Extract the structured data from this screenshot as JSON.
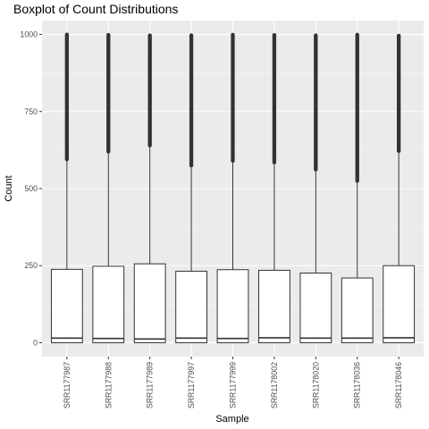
{
  "chart_data": {
    "type": "boxplot",
    "title": "Boxplot of Count Distributions",
    "xlabel": "Sample",
    "ylabel": "Count",
    "ylim": [
      -45,
      1045
    ],
    "yticks": [
      0,
      250,
      500,
      750,
      1000
    ],
    "yticklabels": [
      "0",
      "250",
      "500",
      "750",
      "1000"
    ],
    "grid": true,
    "legend": "none",
    "colors": {
      "panel": "#ebebeb",
      "grid_major": "#ffffff",
      "grid_minor": "#f5f5f5",
      "box_fill": "#ffffff",
      "box_line": "#333333",
      "outlier": "#333333",
      "tick_text": "#4d4d4d"
    },
    "categories": [
      "SRR1177987",
      "SRR1177988",
      "SRR1177989",
      "SRR1177997",
      "SRR1177999",
      "SRR1178002",
      "SRR1178020",
      "SRR1178036",
      "SRR1178046"
    ],
    "boxes": [
      {
        "q1": 0,
        "median": 15,
        "q3": 238,
        "whisker_low": 0,
        "whisker_high": 595,
        "outlier_min": 595,
        "outlier_max": 1000
      },
      {
        "q1": 0,
        "median": 14,
        "q3": 248,
        "whisker_low": 0,
        "whisker_high": 620,
        "outlier_min": 620,
        "outlier_max": 1000
      },
      {
        "q1": 0,
        "median": 12,
        "q3": 256,
        "whisker_low": 0,
        "whisker_high": 640,
        "outlier_min": 640,
        "outlier_max": 1000
      },
      {
        "q1": 0,
        "median": 15,
        "q3": 232,
        "whisker_low": 0,
        "whisker_high": 575,
        "outlier_min": 575,
        "outlier_max": 1000
      },
      {
        "q1": 0,
        "median": 14,
        "q3": 237,
        "whisker_low": 0,
        "whisker_high": 590,
        "outlier_min": 590,
        "outlier_max": 1000
      },
      {
        "q1": 0,
        "median": 16,
        "q3": 235,
        "whisker_low": 0,
        "whisker_high": 585,
        "outlier_min": 585,
        "outlier_max": 1000
      },
      {
        "q1": 0,
        "median": 15,
        "q3": 226,
        "whisker_low": 0,
        "whisker_high": 562,
        "outlier_min": 562,
        "outlier_max": 1000
      },
      {
        "q1": 0,
        "median": 15,
        "q3": 210,
        "whisker_low": 0,
        "whisker_high": 525,
        "outlier_min": 525,
        "outlier_max": 1000
      },
      {
        "q1": 0,
        "median": 16,
        "q3": 250,
        "whisker_low": 0,
        "whisker_high": 622,
        "outlier_min": 622,
        "outlier_max": 1000
      }
    ]
  }
}
